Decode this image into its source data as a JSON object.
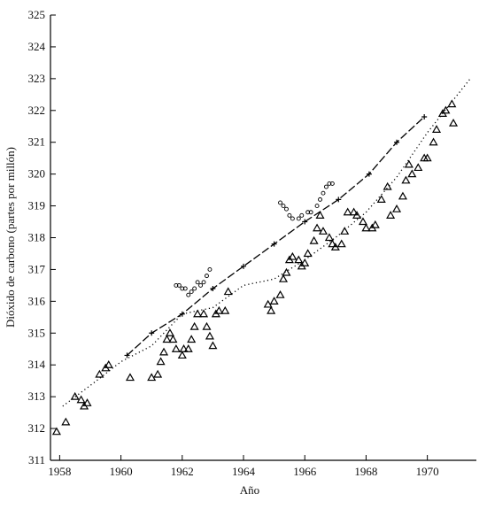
{
  "chart_data": {
    "type": "scatter",
    "xlabel": "Año",
    "ylabel": "Dióxido de carbono (partes por millón)",
    "xlim": [
      1957.7,
      1971.6
    ],
    "xticks": [
      1958,
      1960,
      1962,
      1964,
      1966,
      1968,
      1970
    ],
    "ylim": [
      311,
      325
    ],
    "yticks": [
      311,
      312,
      313,
      314,
      315,
      316,
      317,
      318,
      319,
      320,
      321,
      322,
      323,
      324,
      325
    ],
    "series": [
      {
        "marker": "triangle",
        "color": "#000000",
        "x": [
          1957.9,
          1958.2,
          1958.5,
          1958.7,
          1958.8,
          1958.9,
          1959.3,
          1959.5,
          1959.6,
          1960.3,
          1961.0,
          1961.2,
          1961.3,
          1961.4,
          1961.5,
          1961.6,
          1961.7,
          1961.8,
          1962.0,
          1962.05,
          1962.2,
          1962.3,
          1962.4,
          1962.5,
          1962.7,
          1962.8,
          1962.9,
          1963.0,
          1963.1,
          1963.2,
          1963.4,
          1963.5,
          1964.8,
          1964.9,
          1965.0,
          1965.2,
          1965.3,
          1965.4,
          1965.5,
          1965.6,
          1965.8,
          1965.9,
          1966.0,
          1966.1,
          1966.3,
          1966.4,
          1966.5,
          1966.6,
          1966.8,
          1966.9,
          1967.0,
          1967.2,
          1967.3,
          1967.4,
          1967.6,
          1967.7,
          1967.9,
          1968.0,
          1968.2,
          1968.3,
          1968.5,
          1968.7,
          1968.8,
          1969.0,
          1969.2,
          1969.3,
          1969.4,
          1969.5,
          1969.7,
          1969.9,
          1970.0,
          1970.2,
          1970.3,
          1970.5,
          1970.6,
          1970.8,
          1970.85
        ],
        "values": [
          311.9,
          312.2,
          313.0,
          312.9,
          312.7,
          312.8,
          313.7,
          313.9,
          314.0,
          313.6,
          313.6,
          313.7,
          314.1,
          314.4,
          314.8,
          315.0,
          314.8,
          314.5,
          314.3,
          314.5,
          314.5,
          314.8,
          315.2,
          315.6,
          315.6,
          315.2,
          314.9,
          314.6,
          315.6,
          315.7,
          315.7,
          316.3,
          315.9,
          315.7,
          316.0,
          316.2,
          316.7,
          316.9,
          317.3,
          317.4,
          317.3,
          317.1,
          317.2,
          317.5,
          317.9,
          318.3,
          318.7,
          318.2,
          318.0,
          317.8,
          317.7,
          317.8,
          318.2,
          318.8,
          318.8,
          318.7,
          318.5,
          318.3,
          318.3,
          318.4,
          319.2,
          319.6,
          318.7,
          318.9,
          319.3,
          319.8,
          320.3,
          320.0,
          320.2,
          320.5,
          320.5,
          321.0,
          321.4,
          321.9,
          322.0,
          322.2,
          321.6
        ]
      },
      {
        "line": "dotted",
        "color": "#000000",
        "x": [
          1958.1,
          1959.2,
          1960.0,
          1961.0,
          1962.0,
          1963.0,
          1964.0,
          1965.0,
          1966.0,
          1967.0,
          1968.0,
          1969.0,
          1970.0,
          1971.4
        ],
        "values": [
          312.7,
          313.5,
          314.1,
          314.6,
          315.6,
          315.8,
          316.5,
          316.7,
          317.3,
          318.0,
          318.8,
          319.9,
          321.3,
          323.0
        ]
      },
      {
        "marker": "cross",
        "line": "dashed",
        "color": "#000000",
        "x": [
          1960.2,
          1961.0,
          1962.0,
          1963.0,
          1964.0,
          1965.0,
          1966.0,
          1967.1,
          1968.1,
          1969.0,
          1969.9
        ],
        "values": [
          314.3,
          315.0,
          315.6,
          316.4,
          317.1,
          317.8,
          318.5,
          319.2,
          320.0,
          321.0,
          321.8
        ]
      },
      {
        "marker": "circle",
        "color": "#000000",
        "x": [
          1961.8,
          1961.9,
          1962.0,
          1962.1,
          1962.2,
          1962.3,
          1962.4,
          1962.5,
          1962.6,
          1962.7,
          1962.8,
          1962.9,
          1965.2,
          1965.3,
          1965.4,
          1965.5,
          1965.6,
          1965.8,
          1965.9,
          1966.1,
          1966.2,
          1966.4,
          1966.5,
          1966.6,
          1966.7,
          1966.8,
          1966.9
        ],
        "values": [
          316.5,
          316.5,
          316.4,
          316.4,
          316.2,
          316.3,
          316.4,
          316.6,
          316.5,
          316.6,
          316.8,
          317.0,
          319.1,
          319.0,
          318.9,
          318.7,
          318.6,
          318.6,
          318.7,
          318.8,
          318.8,
          319.0,
          319.2,
          319.4,
          319.6,
          319.7,
          319.7
        ]
      }
    ]
  }
}
